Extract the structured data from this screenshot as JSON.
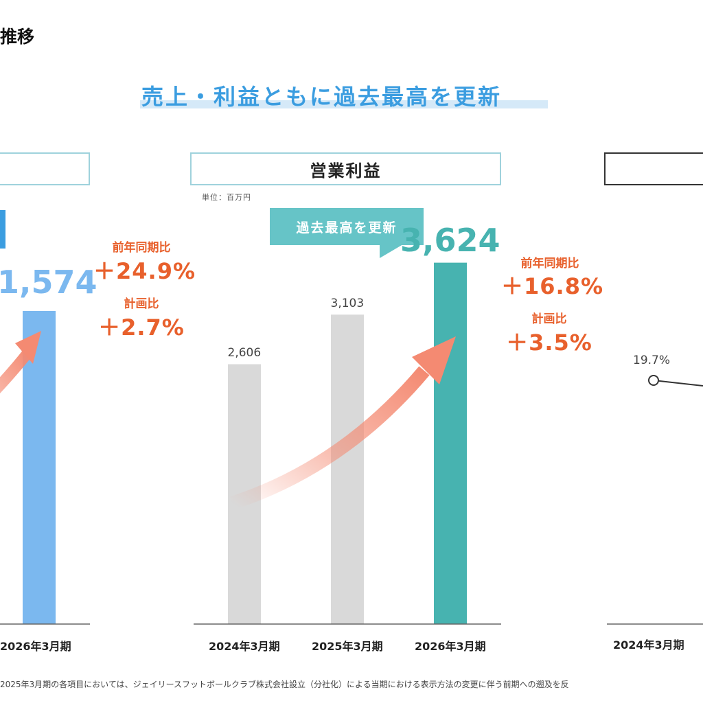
{
  "page": {
    "title": "推移",
    "headline": "売上・利益ともに過去最高を更新",
    "footnote": "2025年3月期の各項目においては、ジェイリースフットボールクラブ株式会社設立（分社化）による当期における表示方法の変更に伴う前期への遡及を反"
  },
  "panels": {
    "left": {
      "title": "",
      "big_value": "1,574",
      "yoy_label": "前年同期比",
      "yoy_value": "＋24.9%",
      "plan_label": "計画比",
      "plan_value": "＋2.7%",
      "x_label": "2026年3月期"
    },
    "center": {
      "title": "営業利益",
      "unit": "単位：百万円",
      "callout": "過去最高を更新",
      "yoy_label": "前年同期比",
      "yoy_value": "＋16.8%",
      "plan_label": "計画比",
      "plan_value": "＋3.5%"
    },
    "right": {
      "title": "",
      "first_point_label": "19.7%",
      "x_label": "2024年3月期"
    }
  },
  "colors": {
    "revenue_bar": "#7bb8ef",
    "profit_bar": "#47b3b0",
    "past_bar": "#d9d9d9",
    "accent_orange": "#e8602c",
    "arrow": "#f48a72",
    "headline": "#3b9de0"
  },
  "chart_data": [
    {
      "type": "bar",
      "title": "営業利益",
      "unit": "単位：百万円",
      "categories": [
        "2024年3月期",
        "2025年3月期",
        "2026年3月期"
      ],
      "values": [
        2606,
        3103,
        3624
      ],
      "value_labels": [
        "2,606",
        "3,103",
        "3,624"
      ],
      "highlight": "2026年3月期",
      "ylim": [
        0,
        4000
      ],
      "grid": false
    },
    {
      "type": "bar",
      "title": "",
      "categories": [
        "2026年3月期"
      ],
      "values": [
        1574
      ],
      "value_labels": [
        "1,574"
      ],
      "grid": false
    },
    {
      "type": "line",
      "title": "",
      "categories": [
        "2024年3月期"
      ],
      "values": [
        19.7
      ],
      "value_labels": [
        "19.7%"
      ],
      "grid": false
    }
  ]
}
